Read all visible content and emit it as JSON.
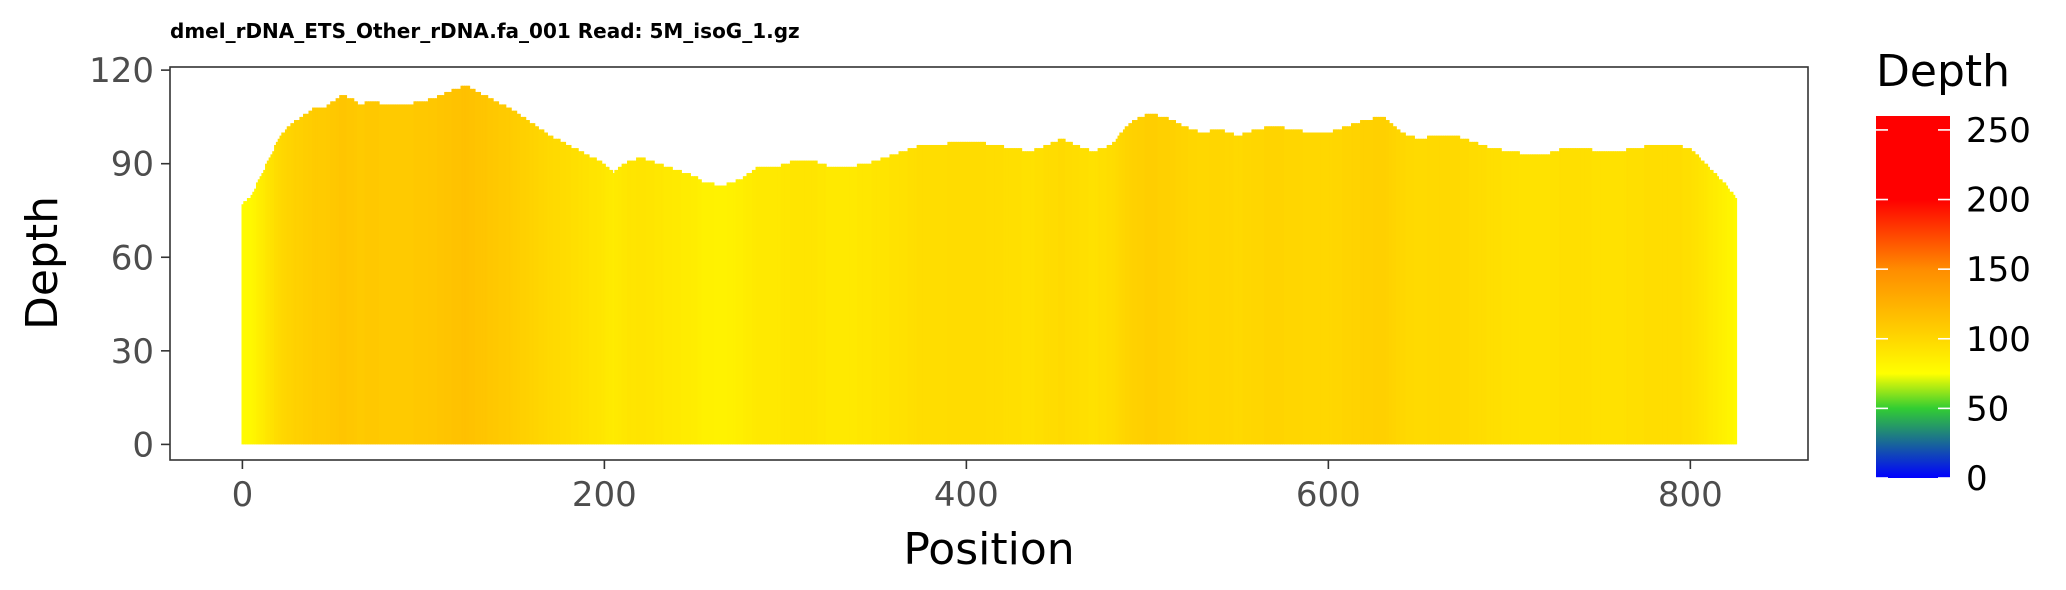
{
  "chart_data": {
    "type": "bar",
    "title": "dmel_rDNA_ETS_Other_rDNA.fa_001 Read: 5M_isoG_1.gz",
    "xlabel": "Position",
    "ylabel": "Depth",
    "xlim": [
      -40,
      865
    ],
    "ylim": [
      -5,
      121
    ],
    "xticks": [
      0,
      200,
      400,
      600,
      800
    ],
    "yticks": [
      0,
      30,
      60,
      90,
      120
    ],
    "grid": false,
    "depth_profile": [
      [
        0,
        77
      ],
      [
        5,
        80
      ],
      [
        10,
        86
      ],
      [
        15,
        92
      ],
      [
        20,
        98
      ],
      [
        25,
        102
      ],
      [
        30,
        104
      ],
      [
        35,
        106
      ],
      [
        40,
        108
      ],
      [
        45,
        108
      ],
      [
        50,
        110
      ],
      [
        55,
        112
      ],
      [
        60,
        111
      ],
      [
        65,
        109
      ],
      [
        70,
        110
      ],
      [
        80,
        109
      ],
      [
        90,
        109
      ],
      [
        100,
        110
      ],
      [
        110,
        112
      ],
      [
        118,
        114
      ],
      [
        124,
        115
      ],
      [
        130,
        113
      ],
      [
        140,
        110
      ],
      [
        150,
        107
      ],
      [
        160,
        103
      ],
      [
        170,
        99
      ],
      [
        180,
        96
      ],
      [
        190,
        93
      ],
      [
        200,
        90
      ],
      [
        205,
        87
      ],
      [
        210,
        90
      ],
      [
        220,
        92
      ],
      [
        230,
        90
      ],
      [
        240,
        88
      ],
      [
        250,
        86
      ],
      [
        255,
        84
      ],
      [
        265,
        83
      ],
      [
        275,
        85
      ],
      [
        285,
        89
      ],
      [
        295,
        89
      ],
      [
        305,
        91
      ],
      [
        315,
        91
      ],
      [
        325,
        89
      ],
      [
        335,
        89
      ],
      [
        345,
        90
      ],
      [
        355,
        92
      ],
      [
        365,
        94
      ],
      [
        375,
        96
      ],
      [
        385,
        96
      ],
      [
        395,
        97
      ],
      [
        405,
        97
      ],
      [
        415,
        96
      ],
      [
        425,
        95
      ],
      [
        435,
        94
      ],
      [
        445,
        96
      ],
      [
        452,
        98
      ],
      [
        460,
        96
      ],
      [
        470,
        94
      ],
      [
        480,
        96
      ],
      [
        490,
        103
      ],
      [
        500,
        106
      ],
      [
        510,
        105
      ],
      [
        520,
        102
      ],
      [
        530,
        100
      ],
      [
        540,
        101
      ],
      [
        550,
        99
      ],
      [
        560,
        101
      ],
      [
        570,
        102
      ],
      [
        580,
        101
      ],
      [
        590,
        100
      ],
      [
        600,
        100
      ],
      [
        610,
        102
      ],
      [
        620,
        104
      ],
      [
        630,
        105
      ],
      [
        640,
        100
      ],
      [
        650,
        98
      ],
      [
        660,
        99
      ],
      [
        670,
        99
      ],
      [
        680,
        97
      ],
      [
        690,
        95
      ],
      [
        700,
        94
      ],
      [
        710,
        93
      ],
      [
        720,
        93
      ],
      [
        730,
        95
      ],
      [
        740,
        95
      ],
      [
        750,
        94
      ],
      [
        760,
        94
      ],
      [
        770,
        95
      ],
      [
        780,
        96
      ],
      [
        790,
        96
      ],
      [
        800,
        95
      ],
      [
        805,
        92
      ],
      [
        810,
        89
      ],
      [
        815,
        86
      ],
      [
        820,
        83
      ],
      [
        825,
        79
      ]
    ],
    "color_scale": {
      "name": "Depth",
      "limits": [
        0,
        260
      ],
      "breaks": [
        0,
        50,
        100,
        150,
        200,
        250
      ],
      "stops": [
        {
          "value": 0,
          "color": "#0000ff"
        },
        {
          "value": 50,
          "color": "#32cd32"
        },
        {
          "value": 75,
          "color": "#ffff00"
        },
        {
          "value": 100,
          "color": "#ffd700"
        },
        {
          "value": 150,
          "color": "#ff8c00"
        },
        {
          "value": 200,
          "color": "#ff0000"
        },
        {
          "value": 260,
          "color": "#ff0000"
        }
      ]
    }
  }
}
